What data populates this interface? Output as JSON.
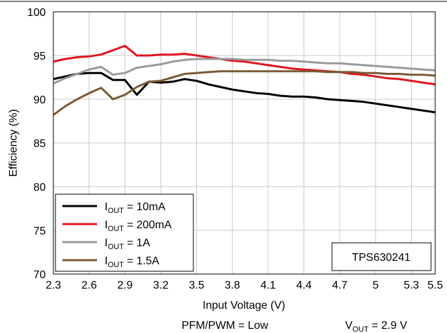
{
  "chart_data": {
    "type": "line",
    "title": "",
    "xlabel": "Input Voltage (V)",
    "ylabel": "Efficiency (%)",
    "xlim": [
      2.3,
      5.5
    ],
    "ylim": [
      70,
      100
    ],
    "x_ticks": [
      "2.3",
      "2.6",
      "2.9",
      "3.2",
      "3.5",
      "3.8",
      "4.1",
      "4.4",
      "4.7",
      "5",
      "5.3",
      "5.5"
    ],
    "y_ticks": [
      "70",
      "75",
      "80",
      "85",
      "90",
      "95",
      "100"
    ],
    "grid": true,
    "legend_position": "bottom-left",
    "annotation_box": "TPS630241",
    "footnote_left": "PFM/PWM = Low",
    "footnote_right": {
      "prefix": "V",
      "sub": "OUT",
      "suffix": " = 2.9 V"
    },
    "series": [
      {
        "legend": {
          "prefix": "I",
          "sub": "OUT",
          "suffix": " = 10mA"
        },
        "color": "#000000",
        "points": [
          [
            2.3,
            92.3
          ],
          [
            2.4,
            92.6
          ],
          [
            2.5,
            92.9
          ],
          [
            2.6,
            93.0
          ],
          [
            2.7,
            93.0
          ],
          [
            2.8,
            92.2
          ],
          [
            2.9,
            92.2
          ],
          [
            3.0,
            90.5
          ],
          [
            3.1,
            92.0
          ],
          [
            3.2,
            91.9
          ],
          [
            3.3,
            92.0
          ],
          [
            3.4,
            92.3
          ],
          [
            3.5,
            92.1
          ],
          [
            3.6,
            91.7
          ],
          [
            3.7,
            91.4
          ],
          [
            3.8,
            91.1
          ],
          [
            3.9,
            90.9
          ],
          [
            4.0,
            90.7
          ],
          [
            4.1,
            90.6
          ],
          [
            4.2,
            90.4
          ],
          [
            4.3,
            90.3
          ],
          [
            4.4,
            90.3
          ],
          [
            4.5,
            90.2
          ],
          [
            4.6,
            90.0
          ],
          [
            4.7,
            89.9
          ],
          [
            4.8,
            89.8
          ],
          [
            4.9,
            89.7
          ],
          [
            5.0,
            89.5
          ],
          [
            5.1,
            89.3
          ],
          [
            5.2,
            89.1
          ],
          [
            5.3,
            88.9
          ],
          [
            5.4,
            88.7
          ],
          [
            5.5,
            88.5
          ]
        ]
      },
      {
        "legend": {
          "prefix": "I",
          "sub": "OUT",
          "suffix": " = 200mA"
        },
        "color": "#e0141e",
        "points": [
          [
            2.3,
            94.3
          ],
          [
            2.4,
            94.6
          ],
          [
            2.5,
            94.8
          ],
          [
            2.6,
            94.9
          ],
          [
            2.7,
            95.1
          ],
          [
            2.8,
            95.6
          ],
          [
            2.9,
            96.1
          ],
          [
            3.0,
            95.0
          ],
          [
            3.1,
            95.0
          ],
          [
            3.2,
            95.1
          ],
          [
            3.3,
            95.1
          ],
          [
            3.4,
            95.2
          ],
          [
            3.5,
            95.0
          ],
          [
            3.6,
            94.8
          ],
          [
            3.7,
            94.6
          ],
          [
            3.8,
            94.4
          ],
          [
            3.9,
            94.3
          ],
          [
            4.0,
            94.1
          ],
          [
            4.1,
            93.9
          ],
          [
            4.2,
            93.7
          ],
          [
            4.3,
            93.5
          ],
          [
            4.4,
            93.4
          ],
          [
            4.5,
            93.3
          ],
          [
            4.6,
            93.2
          ],
          [
            4.7,
            93.1
          ],
          [
            4.8,
            92.9
          ],
          [
            4.9,
            92.8
          ],
          [
            5.0,
            92.6
          ],
          [
            5.1,
            92.4
          ],
          [
            5.2,
            92.3
          ],
          [
            5.3,
            92.1
          ],
          [
            5.4,
            91.9
          ],
          [
            5.5,
            91.7
          ]
        ]
      },
      {
        "legend": {
          "prefix": "I",
          "sub": "OUT",
          "suffix": " = 1A"
        },
        "color": "#9a9a9a",
        "points": [
          [
            2.3,
            91.8
          ],
          [
            2.4,
            92.4
          ],
          [
            2.5,
            92.9
          ],
          [
            2.6,
            93.4
          ],
          [
            2.7,
            93.7
          ],
          [
            2.8,
            92.8
          ],
          [
            2.9,
            93.0
          ],
          [
            3.0,
            93.6
          ],
          [
            3.1,
            93.8
          ],
          [
            3.2,
            94.0
          ],
          [
            3.3,
            94.3
          ],
          [
            3.4,
            94.5
          ],
          [
            3.5,
            94.6
          ],
          [
            3.6,
            94.6
          ],
          [
            3.7,
            94.6
          ],
          [
            3.8,
            94.6
          ],
          [
            3.9,
            94.5
          ],
          [
            4.0,
            94.5
          ],
          [
            4.1,
            94.5
          ],
          [
            4.2,
            94.4
          ],
          [
            4.3,
            94.4
          ],
          [
            4.4,
            94.3
          ],
          [
            4.5,
            94.2
          ],
          [
            4.6,
            94.1
          ],
          [
            4.7,
            94.1
          ],
          [
            4.8,
            94.0
          ],
          [
            4.9,
            93.9
          ],
          [
            5.0,
            93.8
          ],
          [
            5.1,
            93.7
          ],
          [
            5.2,
            93.6
          ],
          [
            5.3,
            93.5
          ],
          [
            5.4,
            93.4
          ],
          [
            5.5,
            93.3
          ]
        ]
      },
      {
        "legend": {
          "prefix": "I",
          "sub": "OUT",
          "suffix": " = 1.5A"
        },
        "color": "#7a5a35",
        "points": [
          [
            2.3,
            88.2
          ],
          [
            2.4,
            89.2
          ],
          [
            2.5,
            90.0
          ],
          [
            2.6,
            90.7
          ],
          [
            2.7,
            91.3
          ],
          [
            2.8,
            90.0
          ],
          [
            2.9,
            90.5
          ],
          [
            3.0,
            91.4
          ],
          [
            3.1,
            92.0
          ],
          [
            3.2,
            92.1
          ],
          [
            3.3,
            92.5
          ],
          [
            3.4,
            92.9
          ],
          [
            3.5,
            93.0
          ],
          [
            3.6,
            93.1
          ],
          [
            3.7,
            93.2
          ],
          [
            3.8,
            93.2
          ],
          [
            3.9,
            93.2
          ],
          [
            4.0,
            93.2
          ],
          [
            4.1,
            93.2
          ],
          [
            4.2,
            93.2
          ],
          [
            4.3,
            93.2
          ],
          [
            4.4,
            93.2
          ],
          [
            4.5,
            93.2
          ],
          [
            4.6,
            93.1
          ],
          [
            4.7,
            93.1
          ],
          [
            4.8,
            93.1
          ],
          [
            4.9,
            93.0
          ],
          [
            5.0,
            93.0
          ],
          [
            5.1,
            92.9
          ],
          [
            5.2,
            92.9
          ],
          [
            5.3,
            92.8
          ],
          [
            5.4,
            92.8
          ],
          [
            5.5,
            92.7
          ]
        ]
      }
    ]
  }
}
